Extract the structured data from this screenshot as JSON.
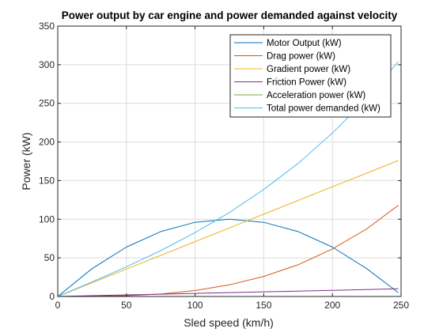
{
  "chart_data": {
    "type": "line",
    "title": "Power output by car engine and power demanded against velocity",
    "xlabel": "Sled speed (km/h)",
    "ylabel": "Power (kW)",
    "xlim": [
      0,
      250
    ],
    "ylim": [
      0,
      350
    ],
    "xticks": [
      0,
      50,
      100,
      150,
      200,
      250
    ],
    "yticks": [
      0,
      50,
      100,
      150,
      200,
      250,
      300,
      350
    ],
    "grid": true,
    "legend_position": "top-right",
    "x": [
      0,
      25,
      50,
      75,
      100,
      125,
      150,
      175,
      200,
      225,
      248
    ],
    "series": [
      {
        "name": "Motor Output (kW)",
        "color": "#0072BD",
        "values": [
          0,
          36,
          64,
          84,
          96,
          100,
          96,
          84,
          64,
          36,
          5
        ]
      },
      {
        "name": "Drag power (kW)",
        "color": "#D95319",
        "values": [
          0,
          0.1,
          1,
          3.2,
          7.7,
          15,
          26,
          41,
          61.5,
          87.5,
          118
        ]
      },
      {
        "name": "Gradient power (kW)",
        "color": "#EDB120",
        "values": [
          0,
          17.7,
          35.5,
          53.2,
          71,
          88.7,
          106.5,
          124.2,
          142,
          159.7,
          176
        ]
      },
      {
        "name": "Friction Power (kW)",
        "color": "#7E2F8E",
        "values": [
          0,
          1,
          2,
          3,
          4,
          5,
          6,
          7,
          8,
          9,
          10
        ]
      },
      {
        "name": "Acceleration power (kW)",
        "color": "#77AC30",
        "values": [
          0,
          0,
          0,
          0,
          0,
          0,
          0,
          0,
          0,
          0,
          0
        ]
      },
      {
        "name": "Total power demanded (kW)",
        "color": "#4DBEEE",
        "values": [
          0,
          18.8,
          38.5,
          59.4,
          82.7,
          108.7,
          138.5,
          172.2,
          211.5,
          256.2,
          304
        ]
      }
    ]
  }
}
